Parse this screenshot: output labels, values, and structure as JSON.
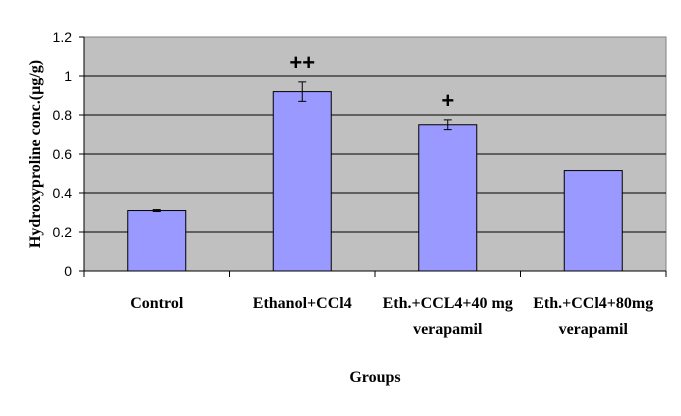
{
  "chart_data": {
    "type": "bar",
    "categories": [
      [
        "Control"
      ],
      [
        "Ethanol+CCl4"
      ],
      [
        "Eth.+CCL4+40 mg",
        "verapamil"
      ],
      [
        "Eth.+CCl4+80mg",
        "verapamil"
      ]
    ],
    "values": [
      0.31,
      0.92,
      0.75,
      0.515
    ],
    "errors": [
      0.005,
      0.05,
      0.025,
      0
    ],
    "significance": [
      "",
      "++",
      "+",
      ""
    ],
    "xlabel": "Groups",
    "ylabel": "Hydroxyproline conc.(µg/g)",
    "ylim": [
      0,
      1.2
    ],
    "yticks": [
      "0",
      "0.2",
      "0.4",
      "0.6",
      "0.8",
      "1",
      "1.2"
    ],
    "grid": true,
    "legend": "none",
    "colors": {
      "bar_fill": "#9999ff",
      "plot_background": "#c0c0c0",
      "gridline": "#000000",
      "bar_stroke": "#000000"
    }
  }
}
